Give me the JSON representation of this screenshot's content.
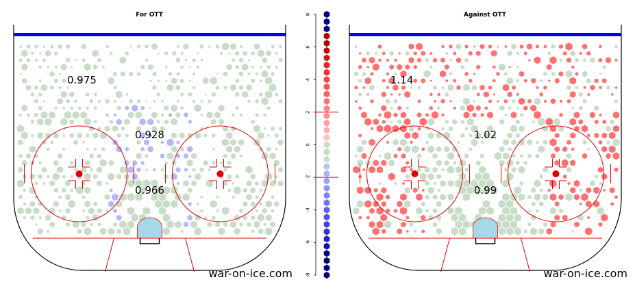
{
  "colors": {
    "rink_line": "#000000",
    "blue_line": "#0000ee",
    "red_line": "#e00000",
    "crease": "#a8d8e8",
    "neutral_hex": "#c8dcc8",
    "positive_hex": "#ff7070",
    "negative_hex": "#b8b8f8"
  },
  "watermark": "war-on-ice.com",
  "chart_data": [
    {
      "type": "heatmap",
      "title": "For OTT",
      "zone_values": [
        {
          "zone": "point",
          "value": "0.975"
        },
        {
          "zone": "slot",
          "value": "0.928"
        },
        {
          "zone": "low-slot",
          "value": "0.966"
        }
      ]
    },
    {
      "type": "heatmap",
      "title": "Against OTT",
      "zone_values": [
        {
          "zone": "point",
          "value": "1.14"
        },
        {
          "zone": "slot",
          "value": "1.02"
        },
        {
          "zone": "low-slot",
          "value": "0.99"
        }
      ]
    },
    {
      "type": "scatter",
      "role": "color-scale-legend",
      "ticks": [
        "8",
        "6",
        "4",
        "2",
        "0",
        "-2",
        "-4",
        "-6",
        "-8"
      ],
      "ylim": [
        -8,
        8
      ],
      "thresholds": [
        2,
        -2
      ],
      "colors": [
        "#000080",
        "#000080",
        "#000080",
        "#b00000",
        "#b00000",
        "#cc0000",
        "#dd1010",
        "#ee2020",
        "#f03030",
        "#ff4040",
        "#ff5050",
        "#ff6060",
        "#ff7070",
        "#ff8080",
        "#ff9090",
        "#ffa0a0",
        "#ffb0b0",
        "#ffc0c0",
        "#c8dcc8",
        "#c8dcc8",
        "#c8dcc8",
        "#c0c0f8",
        "#b0b0f8",
        "#a0a0f8",
        "#9090f8",
        "#8080f8",
        "#7070f8",
        "#6060f0",
        "#5050f0",
        "#4040e8",
        "#3030e0",
        "#2020d0",
        "#1010b0",
        "#000080",
        "#000080",
        "#000080",
        "#000080"
      ]
    }
  ]
}
